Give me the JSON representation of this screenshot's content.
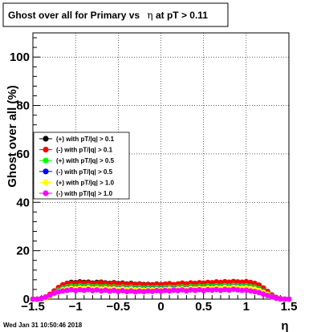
{
  "chart_data": {
    "type": "scatter",
    "title_parts": [
      "Ghost over all for Primary vs ",
      "η",
      " at pT > 0.11"
    ],
    "xlabel": "η",
    "ylabel": "Ghost over all (%)",
    "xlim": [
      -1.5,
      1.5
    ],
    "ylim": [
      0,
      110
    ],
    "x_ticks": [
      -1.5,
      -1,
      -0.5,
      0,
      0.5,
      1,
      1.5
    ],
    "x_tick_labels": [
      "−1.5",
      "−1",
      "−0.5",
      "0",
      "0.5",
      "1",
      "1.5"
    ],
    "y_ticks": [
      0,
      20,
      40,
      60,
      80,
      100
    ],
    "y_tick_labels": [
      "0",
      "20",
      "40",
      "60",
      "80",
      "100"
    ],
    "grid": true,
    "legend_position": "left-middle",
    "series": [
      {
        "name": "(+) with pT/|q| > 0.1",
        "color": "#000000",
        "x": [
          -1.5,
          -1.45,
          -1.4,
          -1.35,
          -1.3,
          -1.25,
          -1.2,
          -1.15,
          -1.1,
          -1.05,
          -1,
          -0.95,
          -0.9,
          -0.85,
          -0.8,
          -0.75,
          -0.7,
          -0.65,
          -0.6,
          -0.55,
          -0.5,
          -0.45,
          -0.4,
          -0.35,
          -0.3,
          -0.25,
          -0.2,
          -0.15,
          -0.1,
          -0.05,
          0,
          0.05,
          0.1,
          0.15,
          0.2,
          0.25,
          0.3,
          0.35,
          0.4,
          0.45,
          0.5,
          0.55,
          0.6,
          0.65,
          0.7,
          0.75,
          0.8,
          0.85,
          0.9,
          0.95,
          1,
          1.05,
          1.1,
          1.15,
          1.2,
          1.25,
          1.3,
          1.35,
          1.4,
          1.45,
          1.5
        ],
        "y": [
          0,
          0,
          0.2,
          0.8,
          1.8,
          3.2,
          4.6,
          5.8,
          6.5,
          6.9,
          6.8,
          7.1,
          6.9,
          7.0,
          6.6,
          6.9,
          7.0,
          6.7,
          6.5,
          6.8,
          6.4,
          6.6,
          6.2,
          6.5,
          6.1,
          6.3,
          6.0,
          6.1,
          5.9,
          6.2,
          6.0,
          6.1,
          6.3,
          5.9,
          6.2,
          6.4,
          6.1,
          6.5,
          6.3,
          6.6,
          6.4,
          6.7,
          6.6,
          6.9,
          6.7,
          7.0,
          6.8,
          7.1,
          6.9,
          6.8,
          7.0,
          6.7,
          6.3,
          5.6,
          4.4,
          3.0,
          1.6,
          0.6,
          0.1,
          0,
          0
        ]
      },
      {
        "name": "(-) with pT/|q| > 0.1",
        "color": "#ff0000",
        "x": [
          -1.5,
          -1.45,
          -1.4,
          -1.35,
          -1.3,
          -1.25,
          -1.2,
          -1.15,
          -1.1,
          -1.05,
          -1,
          -0.95,
          -0.9,
          -0.85,
          -0.8,
          -0.75,
          -0.7,
          -0.65,
          -0.6,
          -0.55,
          -0.5,
          -0.45,
          -0.4,
          -0.35,
          -0.3,
          -0.25,
          -0.2,
          -0.15,
          -0.1,
          -0.05,
          0,
          0.05,
          0.1,
          0.15,
          0.2,
          0.25,
          0.3,
          0.35,
          0.4,
          0.45,
          0.5,
          0.55,
          0.6,
          0.65,
          0.7,
          0.75,
          0.8,
          0.85,
          0.9,
          0.95,
          1,
          1.05,
          1.1,
          1.15,
          1.2,
          1.25,
          1.3,
          1.35,
          1.4,
          1.45,
          1.5
        ],
        "y": [
          0,
          0,
          0.3,
          0.9,
          2.0,
          3.4,
          4.8,
          5.9,
          6.4,
          6.6,
          6.5,
          6.8,
          6.6,
          6.7,
          6.4,
          6.6,
          6.8,
          6.5,
          6.3,
          6.6,
          6.2,
          6.4,
          6.0,
          6.3,
          5.9,
          6.2,
          5.8,
          6.0,
          5.8,
          6.1,
          5.9,
          6.2,
          6.4,
          6.0,
          6.3,
          6.6,
          6.3,
          6.7,
          6.5,
          6.8,
          6.6,
          6.9,
          6.8,
          7.1,
          6.9,
          7.2,
          7.0,
          7.3,
          7.1,
          7.0,
          7.2,
          6.9,
          6.5,
          5.8,
          4.6,
          3.2,
          1.7,
          0.7,
          0.2,
          0,
          0
        ]
      },
      {
        "name": "(+) with pT/|q| > 0.5",
        "color": "#00ff00",
        "x": [
          -1.5,
          -1.45,
          -1.4,
          -1.35,
          -1.3,
          -1.25,
          -1.2,
          -1.15,
          -1.1,
          -1.05,
          -1,
          -0.95,
          -0.9,
          -0.85,
          -0.8,
          -0.75,
          -0.7,
          -0.65,
          -0.6,
          -0.55,
          -0.5,
          -0.45,
          -0.4,
          -0.35,
          -0.3,
          -0.25,
          -0.2,
          -0.15,
          -0.1,
          -0.05,
          0,
          0.05,
          0.1,
          0.15,
          0.2,
          0.25,
          0.3,
          0.35,
          0.4,
          0.45,
          0.5,
          0.55,
          0.6,
          0.65,
          0.7,
          0.75,
          0.8,
          0.85,
          0.9,
          0.95,
          1,
          1.05,
          1.1,
          1.15,
          1.2,
          1.25,
          1.3,
          1.35,
          1.4,
          1.45,
          1.5
        ],
        "y": [
          0,
          0,
          0.2,
          0.7,
          1.5,
          2.6,
          3.7,
          4.5,
          5.0,
          5.3,
          5.1,
          5.4,
          5.2,
          5.5,
          5.1,
          5.3,
          5.0,
          5.2,
          4.9,
          5.1,
          4.8,
          5.0,
          4.7,
          4.9,
          4.6,
          4.8,
          4.5,
          4.7,
          4.6,
          4.8,
          4.6,
          4.8,
          4.9,
          4.7,
          4.9,
          5.1,
          4.8,
          5.2,
          5.0,
          5.3,
          5.1,
          5.4,
          5.2,
          5.5,
          5.3,
          5.6,
          5.4,
          5.7,
          5.5,
          5.4,
          5.5,
          5.2,
          4.9,
          4.3,
          3.4,
          2.3,
          1.2,
          0.4,
          0.1,
          0,
          0
        ]
      },
      {
        "name": "(-) with pT/|q| > 0.5",
        "color": "#0000ff",
        "x": [
          -1.5,
          -1.45,
          -1.4,
          -1.35,
          -1.3,
          -1.25,
          -1.2,
          -1.15,
          -1.1,
          -1.05,
          -1,
          -0.95,
          -0.9,
          -0.85,
          -0.8,
          -0.75,
          -0.7,
          -0.65,
          -0.6,
          -0.55,
          -0.5,
          -0.45,
          -0.4,
          -0.35,
          -0.3,
          -0.25,
          -0.2,
          -0.15,
          -0.1,
          -0.05,
          0,
          0.05,
          0.1,
          0.15,
          0.2,
          0.25,
          0.3,
          0.35,
          0.4,
          0.45,
          0.5,
          0.55,
          0.6,
          0.65,
          0.7,
          0.75,
          0.8,
          0.85,
          0.9,
          0.95,
          1,
          1.05,
          1.1,
          1.15,
          1.2,
          1.25,
          1.3,
          1.35,
          1.4,
          1.45,
          1.5
        ],
        "y": [
          0,
          0,
          0.2,
          0.6,
          1.3,
          2.3,
          3.3,
          4.0,
          4.5,
          4.8,
          4.6,
          4.9,
          4.7,
          5.0,
          4.6,
          4.8,
          4.5,
          4.7,
          4.4,
          4.6,
          4.3,
          4.5,
          4.2,
          4.4,
          4.1,
          4.3,
          4.0,
          4.2,
          4.1,
          4.3,
          4.1,
          4.3,
          4.4,
          4.2,
          4.4,
          4.6,
          4.3,
          4.7,
          4.5,
          4.8,
          4.6,
          4.9,
          4.7,
          5.0,
          4.8,
          5.1,
          4.9,
          5.2,
          5.0,
          4.9,
          5.0,
          4.7,
          4.4,
          3.9,
          3.1,
          2.1,
          1.1,
          0.4,
          0.1,
          0,
          0
        ]
      },
      {
        "name": "(+) with pT/|q| > 1.0",
        "color": "#ffff00",
        "x": [
          -1.5,
          -1.45,
          -1.4,
          -1.35,
          -1.3,
          -1.25,
          -1.2,
          -1.15,
          -1.1,
          -1.05,
          -1,
          -0.95,
          -0.9,
          -0.85,
          -0.8,
          -0.75,
          -0.7,
          -0.65,
          -0.6,
          -0.55,
          -0.5,
          -0.45,
          -0.4,
          -0.35,
          -0.3,
          -0.25,
          -0.2,
          -0.15,
          -0.1,
          -0.05,
          0,
          0.05,
          0.1,
          0.15,
          0.2,
          0.25,
          0.3,
          0.35,
          0.4,
          0.45,
          0.5,
          0.55,
          0.6,
          0.65,
          0.7,
          0.75,
          0.8,
          0.85,
          0.9,
          0.95,
          1,
          1.05,
          1.1,
          1.15,
          1.2,
          1.25,
          1.3,
          1.35,
          1.4,
          1.45,
          1.5
        ],
        "y": [
          0,
          0,
          0.1,
          0.5,
          1.2,
          2.2,
          3.2,
          3.9,
          4.3,
          4.6,
          4.4,
          4.7,
          4.5,
          4.8,
          4.4,
          4.6,
          4.3,
          4.5,
          4.2,
          4.4,
          4.1,
          4.3,
          4.0,
          4.2,
          3.9,
          4.1,
          3.8,
          4.0,
          3.9,
          4.1,
          3.9,
          4.1,
          4.2,
          4.0,
          4.2,
          4.4,
          4.1,
          4.5,
          4.3,
          4.6,
          4.4,
          4.7,
          4.5,
          4.8,
          4.6,
          4.9,
          4.7,
          5.0,
          4.8,
          4.7,
          4.8,
          4.5,
          4.2,
          3.7,
          2.9,
          2.0,
          1.0,
          0.3,
          0.1,
          0,
          0
        ]
      },
      {
        "name": "(-) with pT/|q| > 1.0",
        "color": "#ff00ff",
        "x": [
          -1.5,
          -1.45,
          -1.4,
          -1.35,
          -1.3,
          -1.25,
          -1.2,
          -1.15,
          -1.1,
          -1.05,
          -1,
          -0.95,
          -0.9,
          -0.85,
          -0.8,
          -0.75,
          -0.7,
          -0.65,
          -0.6,
          -0.55,
          -0.5,
          -0.45,
          -0.4,
          -0.35,
          -0.3,
          -0.25,
          -0.2,
          -0.15,
          -0.1,
          -0.05,
          0,
          0.05,
          0.1,
          0.15,
          0.2,
          0.25,
          0.3,
          0.35,
          0.4,
          0.45,
          0.5,
          0.55,
          0.6,
          0.65,
          0.7,
          0.75,
          0.8,
          0.85,
          0.9,
          0.95,
          1,
          1.05,
          1.1,
          1.15,
          1.2,
          1.25,
          1.3,
          1.35,
          1.4,
          1.45,
          1.5
        ],
        "y": [
          0,
          0,
          0.2,
          0.8,
          1.6,
          2.5,
          3.0,
          3.4,
          3.6,
          3.9,
          3.5,
          3.9,
          3.6,
          4.0,
          3.5,
          3.8,
          3.4,
          3.7,
          3.3,
          3.6,
          3.2,
          3.5,
          3.1,
          3.4,
          3.0,
          3.3,
          3.1,
          3.4,
          3.2,
          3.5,
          3.3,
          3.6,
          3.4,
          3.7,
          3.5,
          3.8,
          3.4,
          3.8,
          3.6,
          3.9,
          3.5,
          3.9,
          3.7,
          4.0,
          3.6,
          4.0,
          3.7,
          4.1,
          3.8,
          3.6,
          3.7,
          3.4,
          3.1,
          2.7,
          2.1,
          1.5,
          0.9,
          0.4,
          0.1,
          0,
          0
        ]
      }
    ]
  },
  "footer": {
    "timestamp": "Wed Jan 31 10:50:46 2018"
  }
}
